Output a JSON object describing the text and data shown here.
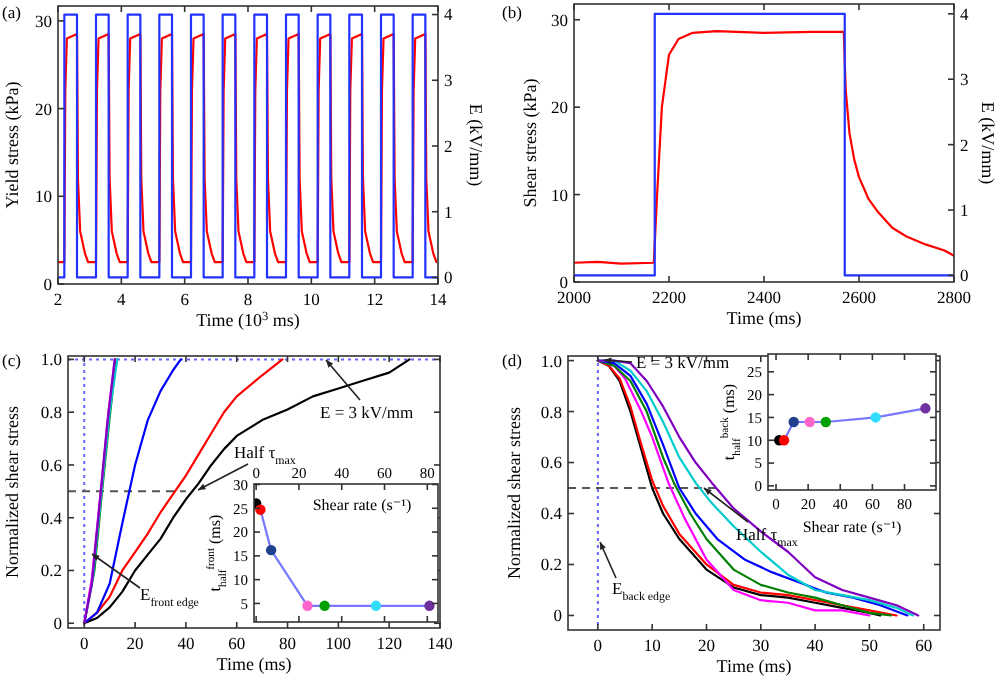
{
  "chart_data": [
    {
      "type": "line",
      "title": "(a)",
      "xlabel": "Time (10$^{3}$ ms)",
      "ylabel": "Yield stress (kPa)",
      "y2label": "E (kV/mm)",
      "xlim": [
        2,
        14
      ],
      "xticks": [
        2,
        4,
        6,
        8,
        10,
        12,
        14
      ],
      "ylim": [
        0,
        31.7
      ],
      "yticks": [
        0,
        10,
        20,
        30
      ],
      "y2lim": [
        -0.1,
        4.13
      ],
      "y2ticks": [
        0,
        1,
        2,
        3,
        4
      ],
      "series": [
        {
          "color": "#ff0000",
          "x": [
            2,
            2.2,
            2.23,
            2.28,
            2.6,
            2.63,
            2.7,
            2.85,
            2.95,
            3.2,
            3.23,
            3.28,
            3.6,
            3.63,
            3.7,
            3.85,
            3.95,
            4.2,
            4.23,
            4.28,
            4.6,
            4.63,
            4.7,
            4.85,
            4.95,
            5.2,
            5.23,
            5.28,
            5.6,
            5.63,
            5.7,
            5.85,
            5.95,
            6.2,
            6.23,
            6.28,
            6.6,
            6.63,
            6.7,
            6.85,
            6.95,
            7.2,
            7.23,
            7.28,
            7.6,
            7.63,
            7.7,
            7.85,
            7.95,
            8.2,
            8.23,
            8.28,
            8.6,
            8.63,
            8.7,
            8.85,
            8.95,
            9.2,
            9.23,
            9.28,
            9.6,
            9.63,
            9.7,
            9.85,
            9.95,
            10.2,
            10.23,
            10.28,
            10.6,
            10.63,
            10.7,
            10.85,
            10.95,
            11.2,
            11.23,
            11.28,
            11.6,
            11.63,
            11.7,
            11.85,
            11.95,
            12.2,
            12.23,
            12.28,
            12.6,
            12.63,
            12.7,
            12.85,
            12.95,
            13.2,
            13.23,
            13.28,
            13.6,
            13.63,
            13.7,
            13.85,
            13.95
          ],
          "values": [
            2.5,
            2.5,
            22,
            28,
            28.5,
            12,
            6,
            3.5,
            2.5,
            2.5,
            22,
            28,
            28.5,
            12,
            6,
            3.5,
            2.5,
            2.5,
            22,
            28,
            28.5,
            12,
            6,
            3.5,
            2.5,
            2.5,
            22,
            28,
            28.5,
            12,
            6,
            3.5,
            2.5,
            2.5,
            22,
            28,
            28.5,
            12,
            6,
            3.5,
            2.5,
            2.5,
            22,
            28,
            28.5,
            12,
            6,
            3.5,
            2.5,
            2.5,
            22,
            28,
            28.5,
            12,
            6,
            3.5,
            2.5,
            2.5,
            22,
            28,
            28.5,
            12,
            6,
            3.5,
            2.5,
            2.5,
            22,
            28,
            28.5,
            12,
            6,
            3.5,
            2.5,
            2.5,
            22,
            28,
            28.5,
            12,
            6,
            3.5,
            2.5,
            2.5,
            22,
            28,
            28.5,
            12,
            6,
            3.5,
            2.5,
            2.5,
            22,
            28,
            28.5,
            12,
            6,
            3.5,
            2.5
          ]
        },
        {
          "color": "#2233ff",
          "axis": "y2",
          "x": [
            2,
            2.2,
            2.2,
            2.6,
            2.6,
            3.2,
            3.2,
            3.6,
            3.6,
            4.2,
            4.2,
            4.6,
            4.6,
            5.2,
            5.2,
            5.6,
            5.6,
            6.2,
            6.2,
            6.6,
            6.6,
            7.2,
            7.2,
            7.6,
            7.6,
            8.2,
            8.2,
            8.6,
            8.6,
            9.2,
            9.2,
            9.6,
            9.6,
            10.2,
            10.2,
            10.6,
            10.6,
            11.2,
            11.2,
            11.6,
            11.6,
            12.2,
            12.2,
            12.6,
            12.6,
            13.2,
            13.2,
            13.6,
            13.6,
            14
          ],
          "values": [
            0,
            0,
            4,
            4,
            0,
            0,
            4,
            4,
            0,
            0,
            4,
            4,
            0,
            0,
            4,
            4,
            0,
            0,
            4,
            4,
            0,
            0,
            4,
            4,
            0,
            0,
            4,
            4,
            0,
            0,
            4,
            4,
            0,
            0,
            4,
            4,
            0,
            0,
            4,
            4,
            0,
            0,
            4,
            4,
            0,
            0,
            4,
            4,
            0,
            0
          ]
        }
      ]
    },
    {
      "type": "line",
      "title": "(b)",
      "xlabel": "Time (ms)",
      "ylabel": "Shear stress (kPa)",
      "y2label": "E (kV/mm)",
      "xlim": [
        2000,
        2800
      ],
      "xticks": [
        2000,
        2200,
        2400,
        2600,
        2800
      ],
      "ylim": [
        0,
        31.8
      ],
      "yticks": [
        0,
        10,
        20,
        30
      ],
      "y2lim": [
        -0.1,
        4.15
      ],
      "y2ticks": [
        0,
        1,
        2,
        3,
        4
      ],
      "series": [
        {
          "color": "#ff0000",
          "x": [
            2000,
            2050,
            2100,
            2168,
            2175,
            2185,
            2200,
            2220,
            2250,
            2300,
            2400,
            2500,
            2568,
            2572,
            2580,
            2590,
            2600,
            2620,
            2640,
            2670,
            2700,
            2740,
            2780,
            2800
          ],
          "values": [
            2.2,
            2.3,
            2.1,
            2.2,
            10,
            20,
            26,
            27.8,
            28.5,
            28.7,
            28.5,
            28.6,
            28.6,
            22,
            17,
            14,
            12,
            9.5,
            8,
            6.2,
            5.2,
            4.3,
            3.6,
            3
          ]
        },
        {
          "color": "#2233ff",
          "axis": "y2",
          "x": [
            2000,
            2170,
            2170,
            2570,
            2570,
            2800
          ],
          "values": [
            0,
            0,
            4,
            4,
            0,
            0
          ]
        }
      ]
    },
    {
      "type": "line",
      "title": "(c)",
      "xlabel": "Time (ms)",
      "ylabel": "Normalized shear stress",
      "xlim": [
        -6.4,
        140
      ],
      "xticks": [
        0,
        20,
        40,
        60,
        80,
        100,
        120,
        140
      ],
      "ylim": [
        -0.018,
        1.013
      ],
      "yticks": [
        0,
        {
          "value": 0.2,
          "label": "0.2"
        },
        {
          "value": 0.4,
          "label": "0.4"
        },
        {
          "value": 0.6,
          "label": "0.6"
        },
        {
          "value": 0.8,
          "label": "0.8"
        },
        {
          "value": 1,
          "label": "1.0"
        }
      ],
      "annotations": [
        "E = 3 kV/mm",
        "Half τ$_{max}$",
        "E$_{front edge}$"
      ],
      "ref_lines": [
        {
          "axis": "x",
          "value": 0,
          "color": "#6666ff",
          "line_style": "dotted"
        },
        {
          "axis": "y",
          "value": 1,
          "color": "#6666ff",
          "line_style": "dotted"
        },
        {
          "axis": "y",
          "value": 0.5,
          "color": "#555555",
          "line_style": "dashed"
        }
      ],
      "series": [
        {
          "color": "#000000",
          "x": [
            0,
            5,
            10,
            15,
            20,
            25,
            30,
            35,
            40,
            45,
            50,
            55,
            60,
            70,
            80,
            90,
            100,
            110,
            120,
            128
          ],
          "values": [
            0,
            0.02,
            0.06,
            0.12,
            0.2,
            0.26,
            0.32,
            0.4,
            0.47,
            0.53,
            0.6,
            0.66,
            0.71,
            0.77,
            0.81,
            0.86,
            0.89,
            0.92,
            0.95,
            1
          ]
        },
        {
          "color": "#ff0000",
          "x": [
            0,
            5,
            10,
            15,
            20,
            25,
            30,
            35,
            40,
            45,
            50,
            55,
            60,
            70,
            78
          ],
          "values": [
            0,
            0.04,
            0.1,
            0.2,
            0.27,
            0.34,
            0.42,
            0.49,
            0.56,
            0.64,
            0.72,
            0.8,
            0.86,
            0.94,
            1
          ]
        },
        {
          "color": "#0000ff",
          "x": [
            0,
            5,
            10,
            15,
            20,
            25,
            30,
            35,
            38
          ],
          "values": [
            0,
            0.04,
            0.15,
            0.38,
            0.6,
            0.77,
            0.88,
            0.96,
            1
          ]
        },
        {
          "color": "#008000",
          "x": [
            0,
            4,
            7,
            10,
            12.5
          ],
          "values": [
            0,
            0.2,
            0.5,
            0.78,
            1
          ]
        },
        {
          "color": "#00cccc",
          "x": [
            0,
            3.5,
            7,
            10,
            13
          ],
          "values": [
            0,
            0.18,
            0.52,
            0.8,
            1
          ]
        },
        {
          "color": "#ff00ff",
          "x": [
            0,
            3,
            6.5,
            9.5,
            12
          ],
          "values": [
            0,
            0.17,
            0.5,
            0.8,
            1
          ]
        },
        {
          "color": "#8000c0",
          "x": [
            0,
            3,
            6,
            9,
            12
          ],
          "values": [
            0,
            0.15,
            0.45,
            0.75,
            1
          ]
        }
      ]
    },
    {
      "type": "line",
      "marker": "circle",
      "ylabel": "t$_{half}$$^{front}$ (ms)",
      "xlabel": "Shear rate (s⁻¹)",
      "xlim": [
        -1,
        85
      ],
      "xticks": [
        0,
        20,
        40,
        60,
        80
      ],
      "ylim": [
        1.1,
        30.1
      ],
      "yticks": [
        5,
        10,
        15,
        20,
        25,
        30
      ],
      "series": [
        {
          "color": "#7777ff",
          "colors": [
            "#000000",
            "#ff0000",
            "#1f3f8f",
            "#ff66cc",
            "#00a000",
            "#33ddff",
            "#7030a0"
          ],
          "x": [
            0,
            2,
            7,
            24,
            32,
            56,
            81
          ],
          "values": [
            26,
            24.7,
            16.2,
            4.5,
            4.5,
            4.5,
            4.5
          ]
        }
      ]
    },
    {
      "type": "line",
      "title": "(d)",
      "xlabel": "Time  (ms)",
      "ylabel": "Normalized shear stress",
      "xlim": [
        -5.5,
        63
      ],
      "xticks": [
        0,
        10,
        20,
        30,
        40,
        50,
        60
      ],
      "ylim": [
        -0.057,
        1.018
      ],
      "yticks": [
        0,
        {
          "value": 0.2,
          "label": "0.2"
        },
        {
          "value": 0.4,
          "label": "0.4"
        },
        {
          "value": 0.6,
          "label": "0.6"
        },
        {
          "value": 0.8,
          "label": "0.8"
        },
        {
          "value": 1,
          "label": "1.0"
        }
      ],
      "annotations": [
        "E = 3 kV/mm",
        "Half τ$_{max}$",
        "E$_{back edge}$"
      ],
      "ref_lines": [
        {
          "axis": "x",
          "value": 0,
          "color": "#6666ff",
          "line_style": "dotted"
        },
        {
          "axis": "y",
          "value": 0.5,
          "color": "#555555",
          "line_style": "dashed"
        }
      ],
      "series": [
        {
          "color": "#000000",
          "x": [
            0,
            2,
            4,
            6,
            8,
            10,
            12,
            15,
            20,
            25,
            30,
            35,
            40,
            45,
            50,
            52
          ],
          "values": [
            1,
            0.98,
            0.92,
            0.8,
            0.65,
            0.5,
            0.4,
            0.3,
            0.18,
            0.11,
            0.08,
            0.07,
            0.05,
            0.03,
            0.01,
            0
          ]
        },
        {
          "color": "#ff0000",
          "x": [
            0,
            2,
            4,
            6,
            8,
            10,
            12,
            15,
            20,
            25,
            30,
            35,
            40,
            45,
            50,
            55
          ],
          "values": [
            1,
            0.98,
            0.93,
            0.82,
            0.67,
            0.53,
            0.43,
            0.32,
            0.2,
            0.12,
            0.09,
            0.08,
            0.06,
            0.04,
            0.02,
            0
          ]
        },
        {
          "color": "#ff00ff",
          "x": [
            0,
            3,
            5,
            8,
            10,
            13,
            16,
            20,
            25,
            30,
            35,
            40,
            45,
            50
          ],
          "values": [
            1,
            0.98,
            0.93,
            0.8,
            0.7,
            0.52,
            0.38,
            0.22,
            0.1,
            0.06,
            0.05,
            0.02,
            0.02,
            0
          ]
        },
        {
          "color": "#008000",
          "x": [
            0,
            3,
            6,
            9,
            12,
            14,
            17,
            20,
            25,
            30,
            35,
            40,
            45,
            50,
            54
          ],
          "values": [
            1,
            0.98,
            0.92,
            0.8,
            0.62,
            0.52,
            0.4,
            0.3,
            0.18,
            0.12,
            0.09,
            0.07,
            0.04,
            0.01,
            0
          ]
        },
        {
          "color": "#0000ff",
          "x": [
            0,
            3,
            6,
            9,
            12,
            15,
            18,
            22,
            27,
            32,
            37,
            42,
            47,
            52,
            57
          ],
          "values": [
            1,
            0.99,
            0.94,
            0.83,
            0.67,
            0.5,
            0.4,
            0.3,
            0.22,
            0.17,
            0.13,
            0.09,
            0.07,
            0.04,
            0
          ]
        },
        {
          "color": "#00cccc",
          "x": [
            0,
            3,
            6,
            9,
            12,
            15,
            18,
            21,
            25,
            30,
            35,
            40,
            45,
            50,
            55,
            58
          ],
          "values": [
            1,
            1,
            0.96,
            0.88,
            0.76,
            0.62,
            0.52,
            0.44,
            0.35,
            0.25,
            0.16,
            0.1,
            0.08,
            0.06,
            0.03,
            0
          ]
        },
        {
          "color": "#8000c0",
          "x": [
            0,
            3,
            6,
            9,
            12,
            15,
            18,
            21,
            25,
            30,
            35,
            40,
            45,
            50,
            55,
            59
          ],
          "values": [
            1,
            1,
            0.99,
            0.92,
            0.82,
            0.7,
            0.6,
            0.52,
            0.42,
            0.33,
            0.25,
            0.15,
            0.1,
            0.07,
            0.04,
            0
          ]
        }
      ]
    },
    {
      "type": "line",
      "marker": "circle",
      "xlabel": "Shear rate (s⁻¹)",
      "ylabel": "t$_{half}$$^{back}$ (ms)",
      "xlim": [
        -5,
        99.6
      ],
      "xticks": [
        0,
        20,
        40,
        60,
        80
      ],
      "ylim": [
        -0.9,
        28.9
      ],
      "yticks": [
        0,
        5,
        10,
        15,
        20,
        25
      ],
      "series": [
        {
          "color": "#7777ff",
          "colors": [
            "#000000",
            "#ff0000",
            "#1f3f8f",
            "#ff66cc",
            "#00a000",
            "#33ddff",
            "#7030a0"
          ],
          "x": [
            2,
            5,
            11,
            21,
            31,
            62,
            93
          ],
          "values": [
            10,
            10,
            14,
            14,
            14,
            15,
            17
          ]
        }
      ]
    }
  ]
}
